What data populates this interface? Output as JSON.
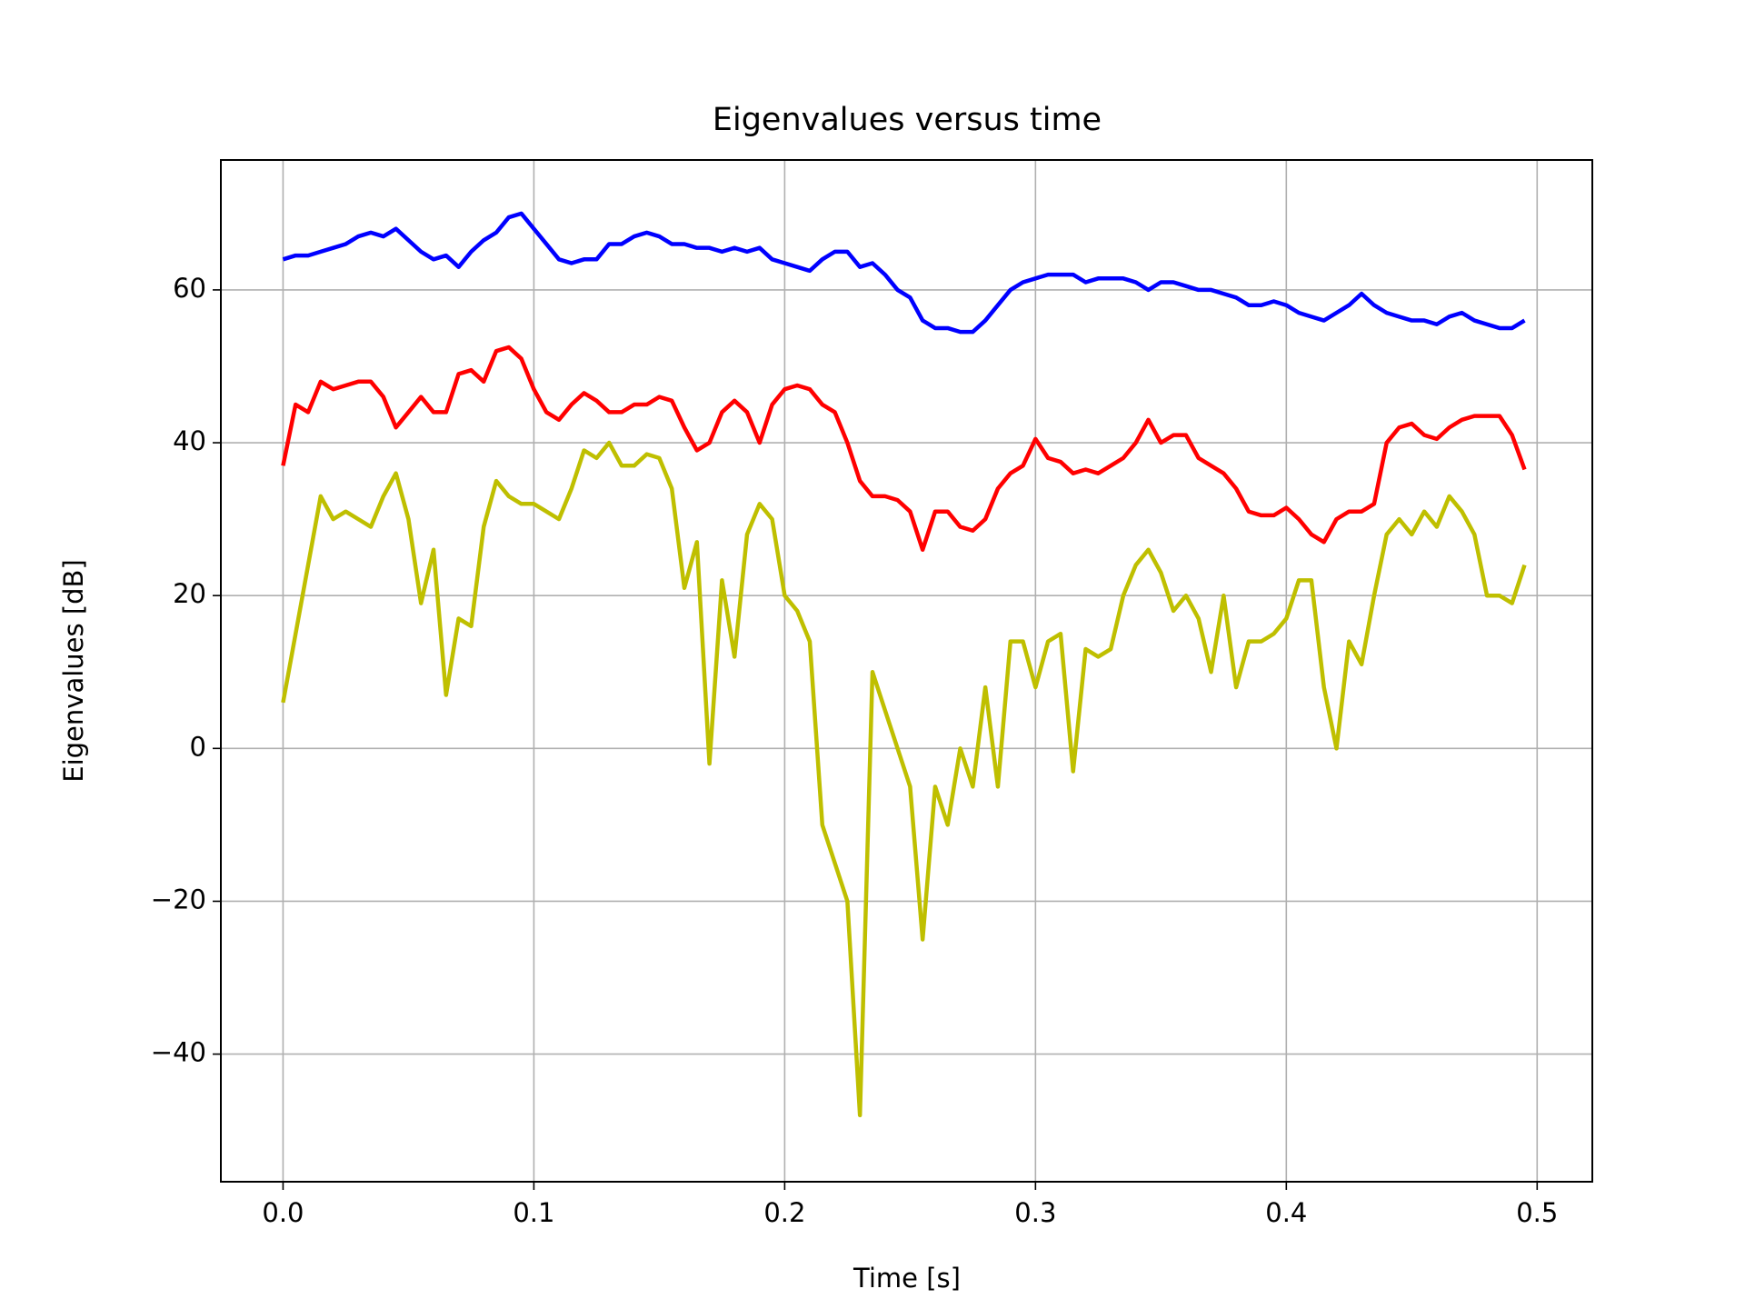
{
  "chart_data": {
    "type": "line",
    "title": "Eigenvalues versus time",
    "xlabel": "Time [s]",
    "ylabel": "Eigenvalues [dB]",
    "x": [
      0,
      0.005,
      0.01,
      0.015,
      0.02,
      0.025,
      0.03,
      0.035,
      0.04,
      0.045,
      0.05,
      0.055,
      0.06,
      0.065,
      0.07,
      0.075,
      0.08,
      0.085,
      0.09,
      0.095,
      0.1,
      0.105,
      0.11,
      0.115,
      0.12,
      0.125,
      0.13,
      0.135,
      0.14,
      0.145,
      0.15,
      0.155,
      0.16,
      0.165,
      0.17,
      0.175,
      0.18,
      0.185,
      0.19,
      0.195,
      0.2,
      0.205,
      0.21,
      0.215,
      0.22,
      0.225,
      0.23,
      0.235,
      0.24,
      0.245,
      0.25,
      0.255,
      0.26,
      0.265,
      0.27,
      0.275,
      0.28,
      0.285,
      0.29,
      0.295,
      0.3,
      0.305,
      0.31,
      0.315,
      0.32,
      0.325,
      0.33,
      0.335,
      0.34,
      0.345,
      0.35,
      0.355,
      0.36,
      0.365,
      0.37,
      0.375,
      0.38,
      0.385,
      0.39,
      0.395,
      0.4,
      0.405,
      0.41,
      0.415,
      0.42,
      0.425,
      0.43,
      0.435,
      0.44,
      0.445,
      0.45,
      0.455,
      0.46,
      0.465,
      0.47,
      0.475,
      0.48,
      0.485,
      0.49,
      0.495
    ],
    "series": [
      {
        "color": "#0000ff",
        "values": [
          64,
          64.5,
          64.5,
          65,
          65.5,
          66,
          67,
          67.5,
          67,
          68,
          66.5,
          65,
          64,
          64.5,
          63,
          65,
          66.5,
          67.5,
          69.5,
          70,
          68,
          66,
          64,
          63.5,
          64,
          64,
          66,
          66,
          67,
          67.5,
          67,
          66,
          66,
          65.5,
          65.5,
          65,
          65.5,
          65,
          65.5,
          64,
          63.5,
          63,
          62.5,
          64,
          65,
          65,
          63,
          63.5,
          62,
          60,
          59,
          56,
          55,
          55,
          54.5,
          54.5,
          56,
          58,
          60,
          61,
          61.5,
          62,
          62,
          62,
          61,
          61.5,
          61.5,
          61.5,
          61,
          60,
          61,
          61,
          60.5,
          60,
          60,
          59.5,
          59,
          58,
          58,
          58.5,
          58,
          57,
          56.5,
          56,
          57,
          58,
          59.5,
          58,
          57,
          56.5,
          56,
          56,
          55.5,
          56.5,
          57,
          56,
          55.5,
          55,
          55,
          56
        ]
      },
      {
        "color": "#ff0000",
        "values": [
          37,
          45,
          44,
          48,
          47,
          47.5,
          48,
          48,
          46,
          42,
          44,
          46,
          44,
          44,
          49,
          49.5,
          48,
          52,
          52.5,
          51,
          47,
          44,
          43,
          45,
          46.5,
          45.5,
          44,
          44,
          45,
          45,
          46,
          45.5,
          42,
          39,
          40,
          44,
          45.5,
          44,
          40,
          45,
          47,
          47.5,
          47,
          45,
          44,
          40,
          35,
          33,
          33,
          32.5,
          31,
          26,
          31,
          31,
          29,
          28.5,
          30,
          34,
          36,
          37,
          40.5,
          38,
          37.5,
          36,
          36.5,
          36,
          37,
          38,
          40,
          43,
          40,
          41,
          41,
          38,
          37,
          36,
          34,
          31,
          30.5,
          30.5,
          31.5,
          30,
          28,
          27,
          30,
          31,
          31,
          32,
          40,
          42,
          42.5,
          41,
          40.5,
          42,
          43,
          43.5,
          43.5,
          43.5,
          41,
          36.5
        ]
      },
      {
        "color": "#bfbf00",
        "values": [
          6,
          15,
          24,
          33,
          30,
          31,
          30,
          29,
          33,
          36,
          30,
          19,
          26,
          7,
          17,
          16,
          29,
          35,
          33,
          32,
          32,
          31,
          30,
          34,
          39,
          38,
          40,
          37,
          37,
          38.5,
          38,
          34,
          21,
          27,
          -2,
          22,
          12,
          28,
          32,
          30,
          20,
          18,
          14,
          -10,
          -15,
          -20,
          -48,
          10,
          5,
          0,
          -5,
          -25,
          -5,
          -10,
          0,
          -5,
          8,
          -5,
          14,
          14,
          8,
          14,
          15,
          -3,
          13,
          12,
          13,
          20,
          24,
          26,
          23,
          18,
          20,
          17,
          10,
          20,
          8,
          14,
          14,
          15,
          17,
          22,
          22,
          8,
          0,
          14,
          11,
          20,
          28,
          30,
          28,
          31,
          29,
          33,
          31,
          28,
          20,
          20,
          19,
          24
        ]
      }
    ],
    "xlim": [
      -0.0248,
      0.522
    ],
    "ylim": [
      -56.7,
      77
    ],
    "xticks": [
      {
        "value": 0,
        "label": "0.0"
      },
      0.1,
      0.2,
      0.3,
      0.4,
      0.5
    ],
    "yticks": [
      {
        "value": -40,
        "label": "−40"
      },
      {
        "value": -20,
        "label": "−20"
      },
      0,
      20,
      40,
      60
    ],
    "grid": true
  }
}
